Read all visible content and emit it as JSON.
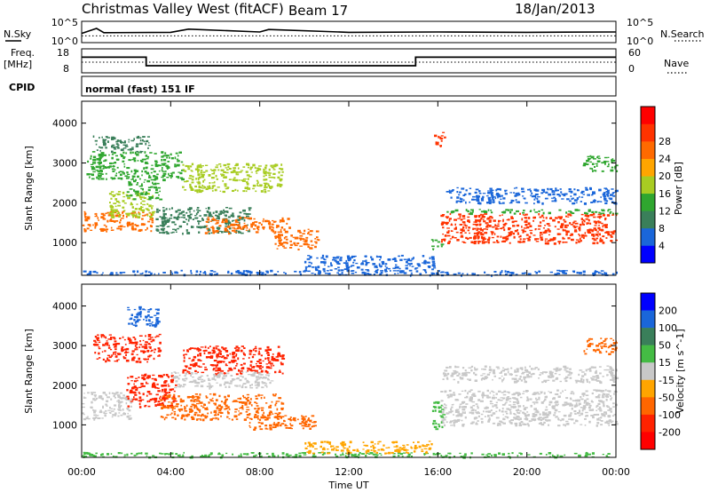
{
  "header": {
    "title": "Christmas Valley West (fitACF)",
    "beam": "Beam 17",
    "date": "18/Jan/2013"
  },
  "mini": {
    "nsky_label": "N.Sky",
    "nsky_ticks": [
      "10^5",
      "10^0"
    ],
    "nsearch_label": "N.Search",
    "nsearch_ticks": [
      "10^5",
      "10^0"
    ],
    "freq_label": [
      "Freq.",
      "[MHz]"
    ],
    "freq_ticks": [
      "18",
      "8"
    ],
    "nave_label": "Nave",
    "nave_ticks": [
      "60",
      "0"
    ],
    "cpid_label": "CPID",
    "cpid_text": "normal (fast) 151 IF"
  },
  "chart_data": [
    {
      "type": "line",
      "name": "noise",
      "x": [
        0,
        0.67,
        1,
        4,
        4.8,
        8,
        8.4,
        12,
        16,
        20,
        24
      ],
      "series": [
        {
          "name": "N.Sky",
          "values": [
            2.1,
            3.5,
            2.3,
            2.4,
            3.3,
            2.5,
            3.2,
            2.4,
            2.5,
            2.4,
            2.5
          ]
        },
        {
          "name": "N.Search",
          "values": [
            1.4,
            1.4,
            1.4,
            1.4,
            1.4,
            1.4,
            1.4,
            1.4,
            1.4,
            1.4,
            1.4
          ]
        }
      ]
    },
    {
      "type": "line",
      "name": "frequency",
      "x": [
        0,
        2.9,
        2.9,
        15,
        15,
        24
      ],
      "series": [
        {
          "name": "Freq",
          "values": [
            14.8,
            14.8,
            10.6,
            10.6,
            14.8,
            14.8
          ]
        },
        {
          "name": "Nave",
          "values": [
            26,
            26,
            26,
            26,
            26,
            26
          ]
        }
      ],
      "ylim": [
        8,
        18
      ]
    },
    {
      "type": "heatmap",
      "name": "power",
      "xlabel": "",
      "ylabel": "Slant Range [km]",
      "xlim": [
        0,
        24
      ],
      "ylim": [
        180,
        4550
      ],
      "yticks": [
        1000,
        2000,
        3000,
        4000
      ],
      "colorbar": {
        "label": "Power [dB]",
        "ticks": [
          4,
          8,
          12,
          16,
          20,
          24,
          28
        ],
        "bins": [
          0,
          4,
          8,
          12,
          16,
          20,
          24,
          28,
          32
        ],
        "colors": [
          "#0000ff",
          "#1a66d9",
          "#3a7f5a",
          "#2fa62f",
          "#a8cc22",
          "#ffa500",
          "#ff6a00",
          "#ff3300",
          "#ff0000"
        ]
      },
      "regions": [
        {
          "x": [
            0,
            3.2
          ],
          "y": [
            1300,
            1800
          ],
          "v": 24
        },
        {
          "x": [
            1.2,
            3.2
          ],
          "y": [
            1650,
            2300
          ],
          "v": 17
        },
        {
          "x": [
            2,
            3.5
          ],
          "y": [
            2100,
            2600
          ],
          "v": 12
        },
        {
          "x": [
            3.3,
            7.5
          ],
          "y": [
            1250,
            1900
          ],
          "v": 8
        },
        {
          "x": [
            5.5,
            9.3
          ],
          "y": [
            1250,
            1650
          ],
          "v": 26
        },
        {
          "x": [
            8.6,
            10.6
          ],
          "y": [
            850,
            1350
          ],
          "v": 27
        },
        {
          "x": [
            0.2,
            4.5
          ],
          "y": [
            2600,
            3300
          ],
          "v": 12
        },
        {
          "x": [
            4.5,
            9
          ],
          "y": [
            2300,
            3000
          ],
          "v": 18
        },
        {
          "x": [
            0.5,
            3
          ],
          "y": [
            3300,
            3700
          ],
          "v": 10
        },
        {
          "x": [
            15.8,
            16.3
          ],
          "y": [
            3400,
            3800
          ],
          "v": 28
        },
        {
          "x": [
            15.7,
            16.2
          ],
          "y": [
            800,
            1100
          ],
          "v": 12
        },
        {
          "x": [
            16.1,
            24
          ],
          "y": [
            1000,
            1750
          ],
          "v": 28
        },
        {
          "x": [
            16.1,
            24
          ],
          "y": [
            1750,
            1850
          ],
          "v": 12
        },
        {
          "x": [
            16.3,
            24
          ],
          "y": [
            2000,
            2400
          ],
          "v": 5
        },
        {
          "x": [
            22.5,
            24
          ],
          "y": [
            2800,
            3200
          ],
          "v": 15
        },
        {
          "x": [
            0,
            24
          ],
          "y": [
            200,
            320
          ],
          "v": 6
        },
        {
          "x": [
            10,
            15.8
          ],
          "y": [
            300,
            700
          ],
          "v": 6
        }
      ]
    },
    {
      "type": "heatmap",
      "name": "velocity",
      "xlabel": "Time UT",
      "ylabel": "Slant Range [km]",
      "xlim": [
        0,
        24
      ],
      "ylim": [
        180,
        4550
      ],
      "yticks": [
        1000,
        2000,
        3000,
        4000
      ],
      "xtick_labels": [
        "00:00",
        "04:00",
        "08:00",
        "12:00",
        "16:00",
        "20:00",
        "00:00"
      ],
      "xticks": [
        0,
        4,
        8,
        12,
        16,
        20,
        24
      ],
      "colorbar": {
        "label": "Velocity [m s^-1]",
        "ticks": [
          200,
          100,
          50,
          15,
          -15,
          -50,
          -100,
          -200
        ],
        "colors": [
          "#0000ff",
          "#1a66d9",
          "#3a7f5a",
          "#44bb44",
          "#c8c8c8",
          "#ffa500",
          "#ff6600",
          "#ff2200",
          "#ff0000"
        ]
      },
      "regions": [
        {
          "x": [
            0,
            2.2
          ],
          "y": [
            1150,
            1850
          ],
          "v": 0
        },
        {
          "x": [
            2,
            4.2
          ],
          "y": [
            1450,
            2300
          ],
          "v": -200
        },
        {
          "x": [
            3.5,
            9
          ],
          "y": [
            1150,
            1800
          ],
          "v": -60
        },
        {
          "x": [
            7.5,
            10.5
          ],
          "y": [
            900,
            1250
          ],
          "v": -70
        },
        {
          "x": [
            0.5,
            3.5
          ],
          "y": [
            2600,
            3300
          ],
          "v": -150
        },
        {
          "x": [
            4.5,
            9
          ],
          "y": [
            2300,
            3000
          ],
          "v": -180
        },
        {
          "x": [
            4,
            8.5
          ],
          "y": [
            1950,
            2350
          ],
          "v": 0
        },
        {
          "x": [
            2,
            3.5
          ],
          "y": [
            3500,
            4000
          ],
          "v": 150
        },
        {
          "x": [
            16.1,
            24
          ],
          "y": [
            1000,
            1900
          ],
          "v": 0
        },
        {
          "x": [
            16.2,
            24
          ],
          "y": [
            2100,
            2500
          ],
          "v": 0
        },
        {
          "x": [
            22.5,
            24
          ],
          "y": [
            2800,
            3200
          ],
          "v": -100
        },
        {
          "x": [
            15.7,
            16.2
          ],
          "y": [
            900,
            1600
          ],
          "v": 40
        },
        {
          "x": [
            0,
            24
          ],
          "y": [
            200,
            320
          ],
          "v": 30
        },
        {
          "x": [
            10,
            15.8
          ],
          "y": [
            300,
            600
          ],
          "v": -40
        }
      ]
    }
  ]
}
